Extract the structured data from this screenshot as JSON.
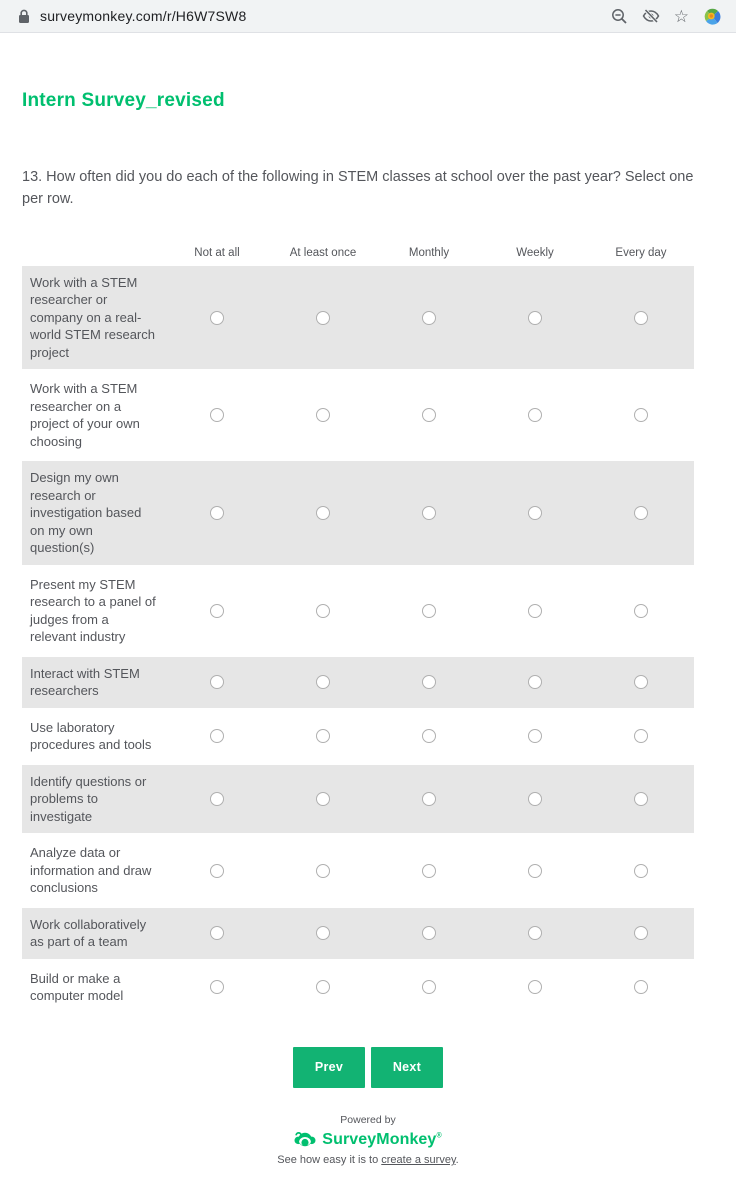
{
  "browser": {
    "url": "surveymonkey.com/r/H6W7SW8",
    "icons": [
      "lock-icon",
      "zoom-out-icon",
      "eye-off-icon",
      "star-icon",
      "extension-icon"
    ]
  },
  "survey": {
    "title": "Intern Survey_revised",
    "question_text": "13. How often did you do each of the following in STEM classes at school over the past year? Select one per row.",
    "columns": [
      "Not at all",
      "At least once",
      "Monthly",
      "Weekly",
      "Every day"
    ],
    "rows": [
      "Work with a STEM researcher or company on a real-world STEM research project",
      "Work with a STEM researcher on a project of your own choosing",
      "Design my own research or investigation based on my own question(s)",
      "Present my STEM research to a panel of judges from a relevant industry",
      "Interact with STEM researchers",
      "Use laboratory procedures and tools",
      "Identify questions or problems to investigate",
      "Analyze data or information and draw conclusions",
      "Work collaboratively as part of a team",
      "Build or make a computer model"
    ],
    "buttons": {
      "prev": "Prev",
      "next": "Next"
    }
  },
  "footer": {
    "powered_by": "Powered by",
    "brand": "SurveyMonkey",
    "brand_mark": "®",
    "tagline_prefix": "See how easy it is to ",
    "tagline_link": "create a survey",
    "tagline_suffix": "."
  },
  "colors": {
    "brand_green": "#00BF6F",
    "button_green": "#12B373",
    "row_shaded": "#e6e6e6",
    "text_gray": "#54565b",
    "omnibar_bg": "#f1f3f4"
  }
}
